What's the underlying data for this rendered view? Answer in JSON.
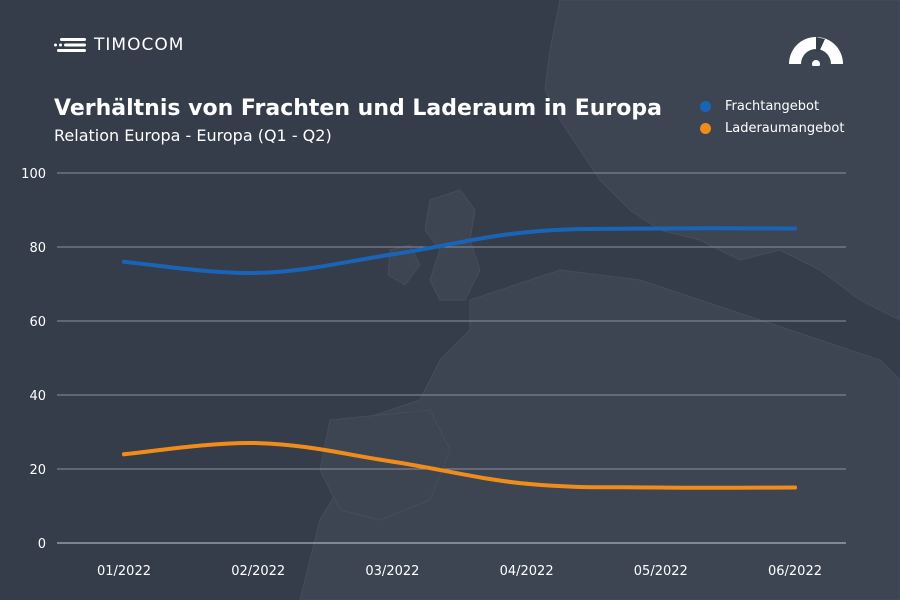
{
  "brand": {
    "name": "TIMOCOM"
  },
  "icons": {
    "logo": "timocom-logo-icon",
    "gauge": "speedometer-gauge-icon"
  },
  "colors": {
    "background": "#353c4a",
    "fracht": "#1a64b7",
    "laderaum": "#f08c1a",
    "grid": "#8a909b"
  },
  "chart_data": {
    "type": "line",
    "title": "Verhältnis von Frachten und Laderaum in Europa",
    "subtitle": "Relation Europa - Europa (Q1 - Q2)",
    "categories": [
      "01/2022",
      "02/2022",
      "03/2022",
      "04/2022",
      "05/2022",
      "06/2022"
    ],
    "series": [
      {
        "name": "Frachtangebot",
        "color": "#1a64b7",
        "values": [
          76,
          73,
          78,
          84,
          85,
          85
        ]
      },
      {
        "name": "Laderaumangebot",
        "color": "#f08c1a",
        "values": [
          24,
          27,
          22,
          16,
          15,
          15
        ]
      }
    ],
    "yticks": [
      0,
      20,
      40,
      60,
      80,
      100
    ],
    "ylim": [
      0,
      100
    ],
    "grid": true,
    "legend_position": "top-right"
  }
}
